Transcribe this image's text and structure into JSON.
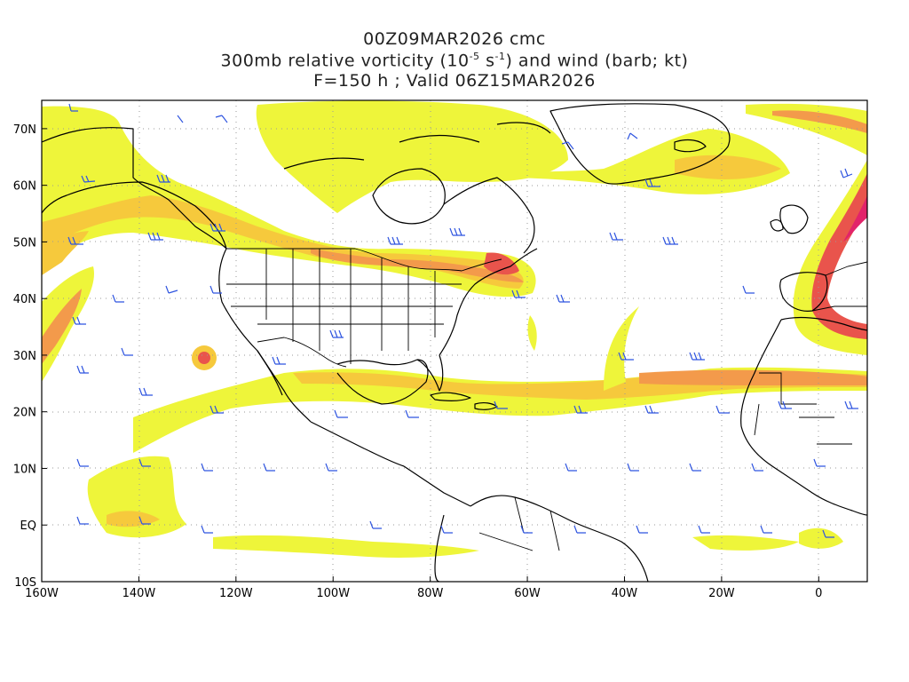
{
  "header": {
    "line1": "00Z09MAR2026 cmc",
    "line2_pre": "300mb relative vorticity (10",
    "line2_exp1": "-5",
    "line2_mid": " s",
    "line2_exp2": "-1",
    "line2_post": ") and wind (barb; kt)",
    "line3": "F=150 h ; Valid 06Z15MAR2026"
  },
  "map": {
    "projection": "cylindrical-equidistant",
    "lon_range": [
      -160,
      10
    ],
    "lat_range": [
      -10,
      75
    ],
    "grid": "dotted",
    "x_ticks": [
      {
        "lon": -160,
        "label": "160W"
      },
      {
        "lon": -140,
        "label": "140W"
      },
      {
        "lon": -120,
        "label": "120W"
      },
      {
        "lon": -100,
        "label": "100W"
      },
      {
        "lon": -80,
        "label": "80W"
      },
      {
        "lon": -60,
        "label": "60W"
      },
      {
        "lon": -40,
        "label": "40W"
      },
      {
        "lon": -20,
        "label": "20W"
      },
      {
        "lon": 0,
        "label": "0"
      }
    ],
    "y_ticks": [
      {
        "lat": -10,
        "label": "10S"
      },
      {
        "lat": 0,
        "label": "EQ"
      },
      {
        "lat": 10,
        "label": "10N"
      },
      {
        "lat": 20,
        "label": "20N"
      },
      {
        "lat": 30,
        "label": "30N"
      },
      {
        "lat": 40,
        "label": "40N"
      },
      {
        "lat": 50,
        "label": "50N"
      },
      {
        "lat": 60,
        "label": "60N"
      },
      {
        "lat": 70,
        "label": "70N"
      }
    ],
    "colors": {
      "vort_low": "#eef53a",
      "vort_mid": "#f6c93c",
      "vort_high": "#f39a4b",
      "vort_max": "#e9544c",
      "vort_extreme": "#e2236a",
      "barb": "#2f55e0",
      "coast": "#000000",
      "grid": "#9a9a9a"
    }
  }
}
